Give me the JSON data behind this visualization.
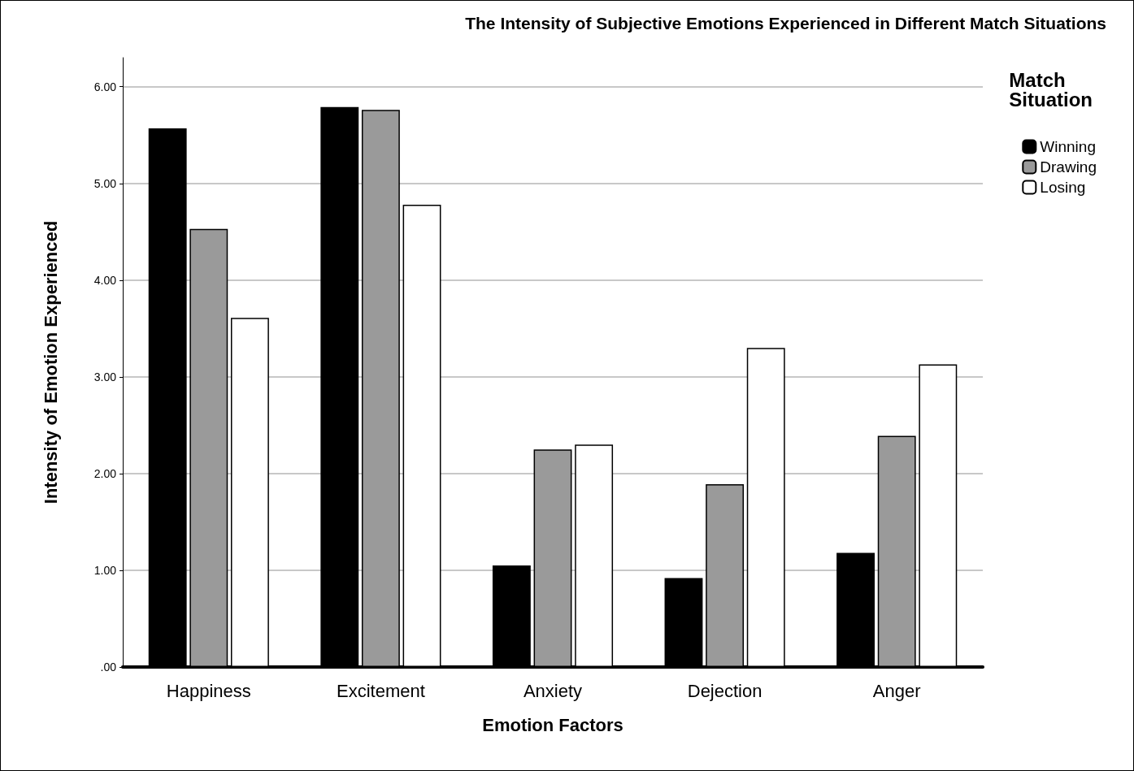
{
  "chart_data": {
    "type": "bar",
    "title": "The Intensity of Subjective Emotions Experienced in Different Match Situations",
    "xlabel": "Emotion Factors",
    "ylabel": "Intensity of Emotion Experienced",
    "legend_title": "Match\nSituation",
    "categories": [
      "Happiness",
      "Excitement",
      "Anxiety",
      "Dejection",
      "Anger"
    ],
    "series": [
      {
        "name": "Winning",
        "color": "#000000",
        "values": [
          5.57,
          5.79,
          1.05,
          0.92,
          1.18
        ]
      },
      {
        "name": "Drawing",
        "color": "#9a9a9a",
        "values": [
          4.53,
          5.76,
          2.25,
          1.89,
          2.39
        ]
      },
      {
        "name": "Losing",
        "color": "#ffffff",
        "values": [
          3.61,
          4.78,
          2.3,
          3.3,
          3.13
        ]
      }
    ],
    "ylim": [
      0,
      6.3
    ],
    "yticks": [
      {
        "value": 0,
        "label": ".00"
      },
      {
        "value": 1,
        "label": "1.00"
      },
      {
        "value": 2,
        "label": "2.00"
      },
      {
        "value": 3,
        "label": "3.00"
      },
      {
        "value": 4,
        "label": "4.00"
      },
      {
        "value": 5,
        "label": "5.00"
      },
      {
        "value": 6,
        "label": "6.00"
      }
    ],
    "grid": "y",
    "legend": "top right"
  }
}
